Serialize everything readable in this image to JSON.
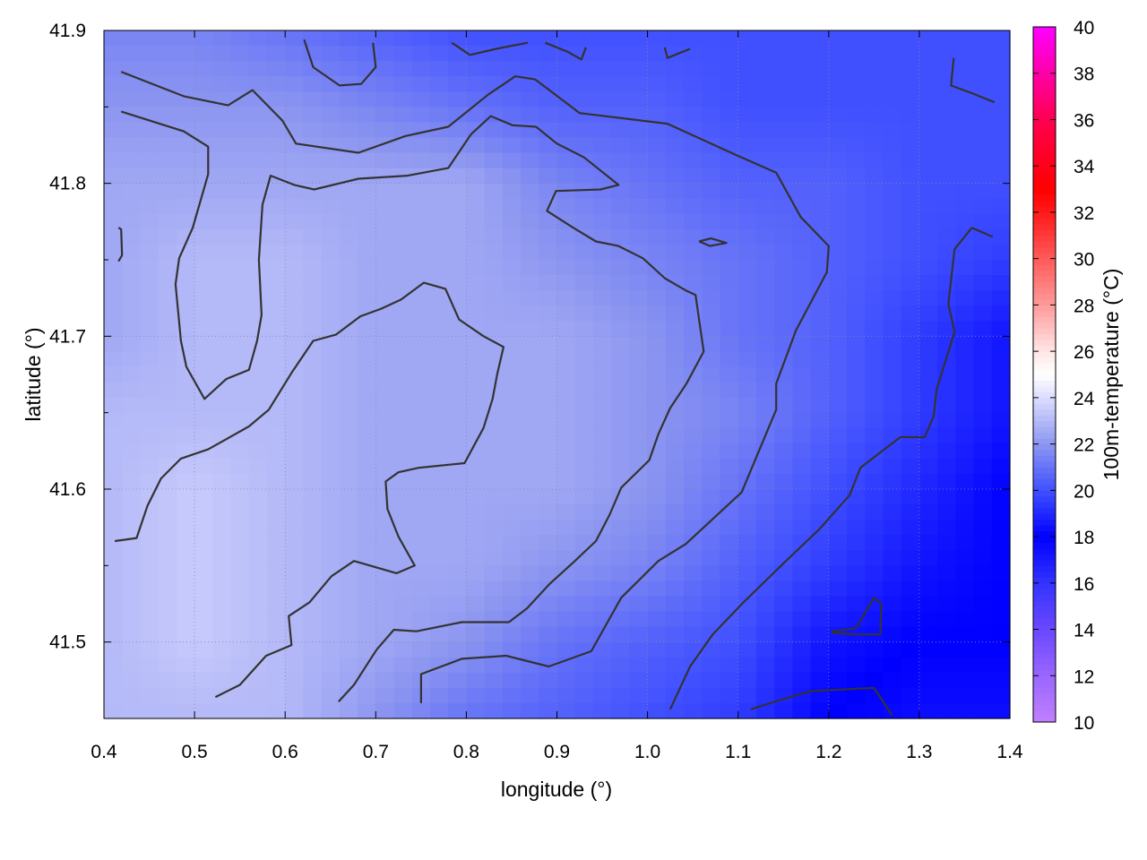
{
  "chart_data": {
    "type": "heatmap",
    "title": "",
    "xlabel": "longitude (°)",
    "ylabel": "latitude (°)",
    "colorbar_label": "100m-temperature (°C)",
    "xlim": [
      0.4,
      1.4
    ],
    "ylim": [
      41.45,
      41.9
    ],
    "clim": [
      10,
      40
    ],
    "xticks": [
      "0.4",
      "0.5",
      "0.6",
      "0.7",
      "0.8",
      "0.9",
      "1.0",
      "1.1",
      "1.2",
      "1.3",
      "1.4"
    ],
    "yticks": [
      "41.5",
      "41.6",
      "41.7",
      "41.8",
      "41.9"
    ],
    "cticks": [
      "10",
      "12",
      "14",
      "16",
      "18",
      "20",
      "22",
      "24",
      "26",
      "28",
      "30",
      "32",
      "34",
      "36",
      "38",
      "40"
    ],
    "grid": true,
    "colormap": [
      [
        10,
        "#c080ff"
      ],
      [
        12,
        "#9a66ff"
      ],
      [
        14,
        "#6a48ff"
      ],
      [
        16,
        "#3434ff"
      ],
      [
        18,
        "#0000ff"
      ],
      [
        20,
        "#4050ff"
      ],
      [
        22,
        "#8c96f0"
      ],
      [
        24,
        "#dcdcff"
      ],
      [
        25,
        "#ffffff"
      ],
      [
        26,
        "#ffe6e6"
      ],
      [
        28,
        "#ff9a9a"
      ],
      [
        30,
        "#ff5a5a"
      ],
      [
        32,
        "#ff1a1a"
      ],
      [
        33,
        "#ff0000"
      ],
      [
        36,
        "#ff0050"
      ],
      [
        40,
        "#ff00ff"
      ]
    ],
    "grid_lon": [
      0.4,
      0.5,
      0.6,
      0.7,
      0.8,
      0.9,
      1.0,
      1.1,
      1.2,
      1.3,
      1.4
    ],
    "grid_lat": [
      41.9,
      41.85,
      41.8,
      41.75,
      41.7,
      41.65,
      41.6,
      41.55,
      41.5,
      41.45
    ],
    "values": [
      [
        21.5,
        21.5,
        21,
        20.5,
        20,
        20,
        20,
        20,
        20,
        20,
        20
      ],
      [
        22,
        22,
        22,
        21.5,
        21,
        20.5,
        20.5,
        20,
        20,
        20,
        20
      ],
      [
        22.5,
        22.5,
        22.5,
        22.5,
        22.5,
        21.5,
        21,
        20.5,
        20.5,
        20,
        20
      ],
      [
        22.5,
        23,
        23,
        22.5,
        22.5,
        22,
        21.5,
        21,
        20.5,
        20,
        19.5
      ],
      [
        22.5,
        23,
        23,
        22.5,
        22.5,
        22.5,
        22,
        21,
        20.5,
        19.5,
        18.5
      ],
      [
        23,
        23,
        23,
        22.5,
        22.5,
        22.5,
        22,
        21.5,
        20.5,
        19.5,
        18.5
      ],
      [
        23,
        23.5,
        23,
        22.5,
        22.5,
        22.5,
        22,
        21,
        20,
        19,
        18
      ],
      [
        23,
        23.5,
        23,
        22.5,
        22.5,
        22,
        21.5,
        20.5,
        19.5,
        18.5,
        18
      ],
      [
        23,
        23.5,
        23,
        22.5,
        22,
        21,
        20.5,
        20,
        18.5,
        18,
        18
      ],
      [
        23,
        23,
        23,
        22,
        21,
        20.5,
        20,
        19.5,
        18,
        17.5,
        17.5
      ]
    ],
    "contour_color": "#333333",
    "contours": [
      [
        [
          0.419,
          41.873
        ],
        [
          0.488,
          41.857
        ],
        [
          0.537,
          41.851
        ],
        [
          0.564,
          41.861
        ],
        [
          0.597,
          41.841
        ],
        [
          0.612,
          41.826
        ],
        [
          0.681,
          41.82
        ],
        [
          0.733,
          41.831
        ],
        [
          0.78,
          41.837
        ],
        [
          0.824,
          41.858
        ],
        [
          0.854,
          41.87
        ],
        [
          0.876,
          41.868
        ],
        [
          0.925,
          41.846
        ],
        [
          1.022,
          41.839
        ],
        [
          1.096,
          41.819
        ],
        [
          1.142,
          41.807
        ],
        [
          1.169,
          41.778
        ],
        [
          1.2,
          41.759
        ],
        [
          1.198,
          41.742
        ],
        [
          1.164,
          41.704
        ],
        [
          1.142,
          41.669
        ],
        [
          1.142,
          41.652
        ],
        [
          1.104,
          41.598
        ],
        [
          1.042,
          41.564
        ],
        [
          1.012,
          41.553
        ],
        [
          0.971,
          41.529
        ],
        [
          0.938,
          41.494
        ],
        [
          0.891,
          41.484
        ],
        [
          0.844,
          41.491
        ],
        [
          0.795,
          41.489
        ],
        [
          0.75,
          41.479
        ],
        [
          0.75,
          41.46
        ]
      ],
      [
        [
          0.419,
          41.847
        ],
        [
          0.488,
          41.834
        ],
        [
          0.515,
          41.824
        ],
        [
          0.515,
          41.806
        ],
        [
          0.498,
          41.771
        ],
        [
          0.483,
          41.751
        ],
        [
          0.479,
          41.734
        ],
        [
          0.485,
          41.697
        ],
        [
          0.491,
          41.68
        ],
        [
          0.511,
          41.659
        ],
        [
          0.535,
          41.672
        ],
        [
          0.56,
          41.678
        ],
        [
          0.569,
          41.697
        ],
        [
          0.574,
          41.714
        ],
        [
          0.571,
          41.75
        ],
        [
          0.575,
          41.786
        ],
        [
          0.584,
          41.805
        ],
        [
          0.61,
          41.799
        ],
        [
          0.632,
          41.796
        ],
        [
          0.681,
          41.803
        ],
        [
          0.735,
          41.805
        ],
        [
          0.78,
          41.81
        ],
        [
          0.805,
          41.832
        ],
        [
          0.827,
          41.844
        ],
        [
          0.851,
          41.838
        ],
        [
          0.877,
          41.837
        ],
        [
          0.9,
          41.826
        ],
        [
          0.93,
          41.817
        ],
        [
          0.968,
          41.799
        ],
        [
          0.948,
          41.796
        ],
        [
          0.899,
          41.795
        ],
        [
          0.889,
          41.782
        ],
        [
          0.918,
          41.771
        ],
        [
          0.943,
          41.762
        ],
        [
          0.968,
          41.759
        ],
        [
          0.995,
          41.751
        ],
        [
          1.019,
          41.738
        ],
        [
          1.042,
          41.73
        ],
        [
          1.053,
          41.727
        ],
        [
          1.062,
          41.69
        ],
        [
          1.043,
          41.669
        ],
        [
          1.025,
          41.653
        ],
        [
          1.012,
          41.636
        ],
        [
          1.002,
          41.619
        ],
        [
          0.971,
          41.601
        ],
        [
          0.958,
          41.583
        ],
        [
          0.943,
          41.566
        ],
        [
          0.918,
          41.552
        ],
        [
          0.892,
          41.538
        ],
        [
          0.867,
          41.522
        ],
        [
          0.847,
          41.513
        ],
        [
          0.795,
          41.513
        ],
        [
          0.745,
          41.507
        ],
        [
          0.72,
          41.508
        ],
        [
          0.701,
          41.495
        ],
        [
          0.676,
          41.472
        ],
        [
          0.659,
          41.461
        ]
      ],
      [
        [
          0.412,
          41.566
        ],
        [
          0.436,
          41.568
        ],
        [
          0.448,
          41.589
        ],
        [
          0.463,
          41.607
        ],
        [
          0.485,
          41.62
        ],
        [
          0.515,
          41.626
        ],
        [
          0.56,
          41.641
        ],
        [
          0.582,
          41.652
        ],
        [
          0.607,
          41.676
        ],
        [
          0.631,
          41.697
        ],
        [
          0.656,
          41.701
        ],
        [
          0.683,
          41.713
        ],
        [
          0.706,
          41.718
        ],
        [
          0.728,
          41.724
        ],
        [
          0.753,
          41.735
        ],
        [
          0.777,
          41.731
        ],
        [
          0.792,
          41.711
        ],
        [
          0.819,
          41.7
        ],
        [
          0.841,
          41.693
        ],
        [
          0.834,
          41.675
        ],
        [
          0.829,
          41.659
        ],
        [
          0.819,
          41.64
        ],
        [
          0.798,
          41.617
        ],
        [
          0.748,
          41.614
        ],
        [
          0.725,
          41.611
        ],
        [
          0.711,
          41.605
        ],
        [
          0.713,
          41.587
        ],
        [
          0.725,
          41.569
        ],
        [
          0.743,
          41.55
        ],
        [
          0.723,
          41.545
        ],
        [
          0.676,
          41.553
        ],
        [
          0.651,
          41.543
        ],
        [
          0.627,
          41.526
        ],
        [
          0.604,
          41.517
        ],
        [
          0.607,
          41.498
        ],
        [
          0.579,
          41.491
        ],
        [
          0.55,
          41.472
        ],
        [
          0.523,
          41.464
        ]
      ],
      [
        [
          1.381,
          41.765
        ],
        [
          1.358,
          41.771
        ],
        [
          1.339,
          41.757
        ],
        [
          1.332,
          41.721
        ],
        [
          1.339,
          41.703
        ],
        [
          1.319,
          41.665
        ],
        [
          1.316,
          41.648
        ],
        [
          1.306,
          41.634
        ],
        [
          1.279,
          41.634
        ],
        [
          1.235,
          41.614
        ],
        [
          1.223,
          41.596
        ],
        [
          1.19,
          41.574
        ],
        [
          1.151,
          41.552
        ],
        [
          1.106,
          41.526
        ],
        [
          1.072,
          41.505
        ],
        [
          1.047,
          41.484
        ],
        [
          1.025,
          41.456
        ]
      ],
      [
        [
          1.114,
          41.456
        ],
        [
          1.146,
          41.462
        ],
        [
          1.181,
          41.468
        ],
        [
          1.25,
          41.47
        ],
        [
          1.27,
          41.452
        ]
      ],
      [
        [
          1.203,
          41.507
        ],
        [
          1.23,
          41.509
        ],
        [
          1.25,
          41.529
        ],
        [
          1.258,
          41.525
        ],
        [
          1.257,
          41.505
        ],
        [
          1.23,
          41.505
        ],
        [
          1.203,
          41.506
        ]
      ],
      [
        [
          0.621,
          41.894
        ],
        [
          0.631,
          41.876
        ],
        [
          0.66,
          41.864
        ],
        [
          0.684,
          41.865
        ],
        [
          0.7,
          41.876
        ],
        [
          0.697,
          41.892
        ]
      ],
      [
        [
          0.784,
          41.892
        ],
        [
          0.804,
          41.884
        ],
        [
          0.833,
          41.888
        ],
        [
          0.868,
          41.892
        ]
      ],
      [
        [
          0.887,
          41.892
        ],
        [
          0.912,
          41.886
        ],
        [
          0.927,
          41.881
        ],
        [
          0.932,
          41.889
        ]
      ],
      [
        [
          1.019,
          41.889
        ],
        [
          1.022,
          41.882
        ],
        [
          1.047,
          41.888
        ]
      ],
      [
        [
          1.338,
          41.882
        ],
        [
          1.335,
          41.864
        ],
        [
          1.358,
          41.859
        ],
        [
          1.383,
          41.853
        ]
      ],
      [
        [
          1.057,
          41.762
        ],
        [
          1.07,
          41.764
        ],
        [
          1.087,
          41.761
        ],
        [
          1.069,
          41.759
        ],
        [
          1.057,
          41.762
        ]
      ],
      [
        [
          0.416,
          41.771
        ],
        [
          0.419,
          41.77
        ],
        [
          0.42,
          41.753
        ],
        [
          0.416,
          41.749
        ]
      ]
    ]
  }
}
